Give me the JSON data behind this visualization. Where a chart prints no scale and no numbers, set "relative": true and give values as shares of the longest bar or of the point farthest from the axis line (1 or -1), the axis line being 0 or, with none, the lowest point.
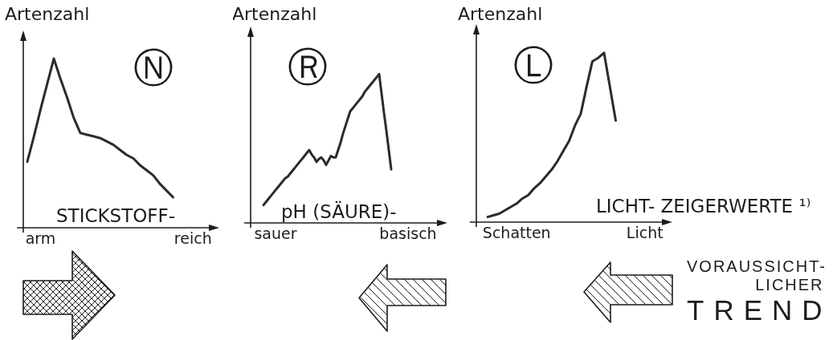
{
  "chart_data": [
    {
      "type": "line",
      "ylabel": "Artenzahl",
      "xlabel": "STICKSTOFF-",
      "relative": true,
      "categories": [
        null,
        null,
        "arm",
        null,
        null,
        null,
        null,
        null,
        null,
        null,
        null,
        null,
        null,
        null,
        null,
        null,
        null,
        null,
        null,
        null,
        null,
        null,
        null,
        null,
        null,
        "reich"
      ],
      "values": [
        0.39,
        0.54,
        0.7,
        0.85,
        1,
        0.88,
        0.77,
        0.65,
        0.56,
        0.55,
        0.54,
        0.53,
        0.51,
        0.49,
        0.46,
        0.43,
        0.41,
        0.37,
        0.34,
        0.31,
        0.26,
        0.22,
        0.18,
        null,
        null,
        null
      ],
      "color": "#2b2b2b",
      "marker": "none",
      "annotations": [
        "Ⓝ"
      ]
    },
    {
      "type": "line",
      "ylabel": "Artenzahl",
      "xlabel": "pH (SÄURE)-",
      "relative": true,
      "categories": [
        null,
        null,
        null,
        null,
        null,
        "sauer",
        null,
        null,
        null,
        null,
        null,
        null,
        null,
        null,
        null,
        null,
        null,
        null,
        null,
        null,
        null,
        null,
        null,
        null,
        null,
        null,
        null,
        null,
        null,
        null,
        null,
        null,
        null,
        null,
        null,
        null,
        null,
        null,
        null,
        null,
        null,
        null,
        null,
        null,
        null,
        null,
        null,
        null,
        null,
        null,
        null,
        null,
        null,
        null,
        null,
        null,
        null,
        null,
        null,
        null,
        "basisch"
      ],
      "values": [
        0.12,
        0.14,
        0.16,
        0.18,
        0.2,
        0.22,
        0.24,
        0.26,
        0.28,
        0.3,
        0.31,
        0.33,
        0.35,
        0.37,
        0.39,
        0.41,
        0.43,
        0.45,
        0.47,
        0.49,
        0.46,
        0.44,
        0.41,
        0.43,
        0.44,
        0.42,
        0.39,
        0.42,
        0.45,
        0.44,
        0.44,
        0.49,
        0.54,
        0.6,
        0.65,
        0.7,
        0.75,
        0.77,
        0.79,
        0.81,
        0.83,
        0.85,
        0.88,
        0.9,
        0.92,
        0.94,
        0.96,
        0.98,
        1,
        0.87,
        0.74,
        0.62,
        0.49,
        0.36,
        null,
        null,
        null,
        null,
        null,
        null,
        null
      ],
      "color": "#2b2b2b",
      "marker": "none",
      "annotations": [
        "Ⓡ"
      ]
    },
    {
      "type": "line",
      "ylabel": "Artenzahl",
      "xlabel": "LICHT- ZEIGERWERTE ¹⁾",
      "relative": true,
      "categories": [
        null,
        null,
        null,
        null,
        null,
        "Schatten",
        null,
        null,
        null,
        null,
        null,
        null,
        null,
        null,
        null,
        null,
        null,
        null,
        null,
        null,
        null,
        null,
        null,
        null,
        null,
        null,
        null,
        "Licht"
      ],
      "values": [
        0.03,
        0.04,
        0.05,
        0.07,
        0.09,
        0.11,
        0.14,
        0.16,
        0.2,
        0.23,
        0.27,
        0.31,
        0.36,
        0.42,
        0.48,
        0.57,
        0.64,
        0.8,
        0.95,
        0.97,
        1,
        0.8,
        0.6,
        null,
        null,
        null,
        null,
        null
      ],
      "color": "#2b2b2b",
      "marker": "none",
      "annotations": [
        "Ⓛ",
        "VORAUSSICHT-\nLICHER\nTREND"
      ]
    }
  ]
}
